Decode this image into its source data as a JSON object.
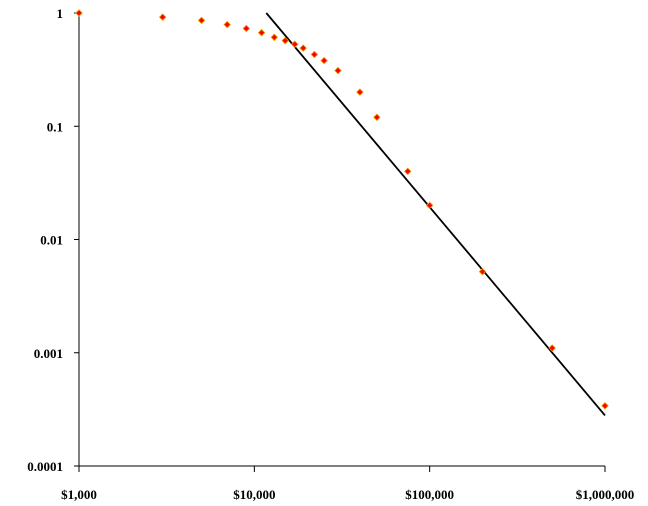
{
  "chart_data": {
    "type": "scatter",
    "x_scale": "log",
    "y_scale": "log",
    "xlim": [
      1000,
      1000000
    ],
    "ylim": [
      0.0001,
      1
    ],
    "grid": false,
    "x_ticks": [
      {
        "value": 1000,
        "label": "$1,000"
      },
      {
        "value": 10000,
        "label": "$10,000"
      },
      {
        "value": 100000,
        "label": "$100,000"
      },
      {
        "value": 1000000,
        "label": "$1,000,000"
      }
    ],
    "y_ticks": [
      {
        "value": 1,
        "label": "1"
      },
      {
        "value": 0.1,
        "label": "0.1"
      },
      {
        "value": 0.01,
        "label": "0.01"
      },
      {
        "value": 0.001,
        "label": "0.001"
      },
      {
        "value": 0.0001,
        "label": "0.0001"
      }
    ],
    "series": [
      {
        "kind": "points",
        "color": "#ff0000",
        "edge_color": "#e8a000",
        "marker": "diamond",
        "points": [
          {
            "x": 1000,
            "y": 1.0
          },
          {
            "x": 3000,
            "y": 0.92
          },
          {
            "x": 5000,
            "y": 0.86
          },
          {
            "x": 7000,
            "y": 0.79
          },
          {
            "x": 9000,
            "y": 0.73
          },
          {
            "x": 11000,
            "y": 0.67
          },
          {
            "x": 13000,
            "y": 0.61
          },
          {
            "x": 15000,
            "y": 0.57
          },
          {
            "x": 17000,
            "y": 0.53
          },
          {
            "x": 19000,
            "y": 0.49
          },
          {
            "x": 22000,
            "y": 0.43
          },
          {
            "x": 25000,
            "y": 0.38
          },
          {
            "x": 30000,
            "y": 0.31
          },
          {
            "x": 40000,
            "y": 0.2
          },
          {
            "x": 50000,
            "y": 0.12
          },
          {
            "x": 75000,
            "y": 0.04
          },
          {
            "x": 100000,
            "y": 0.02
          },
          {
            "x": 200000,
            "y": 0.0052
          },
          {
            "x": 500000,
            "y": 0.0011
          },
          {
            "x": 1000000,
            "y": 0.00034
          }
        ]
      },
      {
        "kind": "fit-line",
        "color": "#000000",
        "points": [
          {
            "x": 11700,
            "y": 1.0
          },
          {
            "x": 1000000,
            "y": 0.00028
          }
        ]
      }
    ]
  }
}
